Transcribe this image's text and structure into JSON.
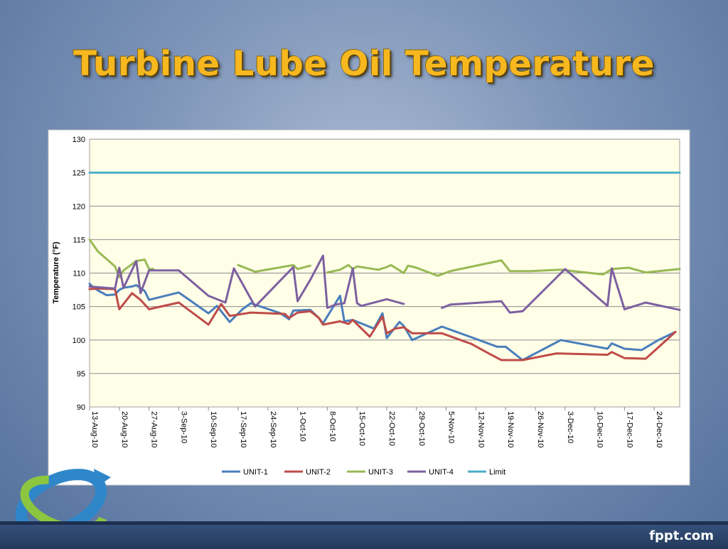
{
  "slide": {
    "title": "Turbine Lube Oil Temperature",
    "brand": "fppt.com"
  },
  "colors": {
    "unit1": "#4a7ebb",
    "unit2": "#be4b48",
    "unit3": "#98b954",
    "unit4": "#7d60a0",
    "limit": "#4bacc6",
    "plot_bg": "#ffffe8",
    "title": "#f7b81f"
  },
  "icons": {
    "logo": "circular-arrows-logo-icon"
  },
  "chart_data": {
    "type": "line",
    "ylabel": "Temperature (°F)",
    "xlabel": "",
    "ylim": [
      90,
      130
    ],
    "yticks": [
      90,
      95,
      100,
      105,
      110,
      115,
      120,
      125,
      130
    ],
    "xlim": [
      "13-Aug-10",
      "30-Dec-10"
    ],
    "xticks": [
      "13-Aug-10",
      "20-Aug-10",
      "27-Aug-10",
      "3-Sep-10",
      "10-Sep-10",
      "17-Sep-10",
      "24-Sep-10",
      "1-Oct-10",
      "8-Oct-10",
      "15-Oct-10",
      "22-Oct-10",
      "29-Oct-10",
      "5-Nov-10",
      "12-Nov-10",
      "19-Nov-10",
      "26-Nov-10",
      "3-Dec-10",
      "10-Dec-10",
      "17-Dec-10",
      "24-Dec-10"
    ],
    "grid": "horizontal",
    "legend_position": "bottom",
    "series": [
      {
        "name": "UNIT-1",
        "points": [
          [
            "13-Aug-10",
            108.4
          ],
          [
            "14-Aug-10",
            107.8
          ],
          [
            "15-Aug-10",
            107.4
          ],
          [
            "17-Aug-10",
            106.7
          ],
          [
            "19-Aug-10",
            106.8
          ],
          [
            "20-Aug-10",
            107.5
          ],
          [
            "21-Aug-10",
            107.8
          ],
          [
            "23-Aug-10",
            108.0
          ],
          [
            "24-Aug-10",
            108.2
          ],
          [
            "26-Aug-10",
            107.3
          ],
          [
            "27-Aug-10",
            106.0
          ],
          [
            "3-Sep-10",
            107.1
          ],
          [
            "10-Sep-10",
            104.0
          ],
          [
            "12-Sep-10",
            105.1
          ],
          [
            "15-Sep-10",
            102.7
          ],
          [
            "18-Sep-10",
            104.6
          ],
          [
            "20-Sep-10",
            105.5
          ],
          [
            "27-Sep-10",
            104.0
          ],
          [
            "29-Sep-10",
            103.1
          ],
          [
            "30-Sep-10",
            104.4
          ],
          [
            "4-Oct-10",
            104.5
          ],
          [
            "6-Oct-10",
            103.3
          ],
          [
            "7-Oct-10",
            102.5
          ],
          [
            "11-Oct-10",
            106.6
          ],
          [
            "12-Oct-10",
            102.8
          ],
          [
            "14-Oct-10",
            103.0
          ],
          [
            "19-Oct-10",
            101.7
          ],
          [
            "21-Oct-10",
            104.0
          ],
          [
            "22-Oct-10",
            100.3
          ],
          [
            "25-Oct-10",
            102.7
          ],
          [
            "26-Oct-10",
            102.1
          ],
          [
            "28-Oct-10",
            100.0
          ],
          [
            "4-Nov-10",
            102.0
          ],
          [
            "11-Nov-10",
            100.4
          ],
          [
            "17-Nov-10",
            99.0
          ],
          [
            "19-Nov-10",
            99.0
          ],
          [
            "23-Nov-10",
            97.0
          ],
          [
            "2-Dec-10",
            100.0
          ],
          [
            "13-Dec-10",
            98.7
          ],
          [
            "14-Dec-10",
            99.5
          ],
          [
            "17-Dec-10",
            98.7
          ],
          [
            "21-Dec-10",
            98.5
          ],
          [
            "25-Dec-10",
            100.0
          ],
          [
            "29-Dec-10",
            101.2
          ]
        ]
      },
      {
        "name": "UNIT-2",
        "points": [
          [
            "13-Aug-10",
            107.6
          ],
          [
            "15-Aug-10",
            107.7
          ],
          [
            "19-Aug-10",
            107.6
          ],
          [
            "20-Aug-10",
            104.6
          ],
          [
            "23-Aug-10",
            107.0
          ],
          [
            "25-Aug-10",
            106.0
          ],
          [
            "27-Aug-10",
            104.6
          ],
          [
            "3-Sep-10",
            105.6
          ],
          [
            "10-Sep-10",
            102.3
          ],
          [
            "13-Sep-10",
            105.4
          ],
          [
            "15-Sep-10",
            103.6
          ],
          [
            "20-Sep-10",
            104.1
          ],
          [
            "28-Sep-10",
            103.9
          ],
          [
            "29-Sep-10",
            103.3
          ],
          [
            "1-Oct-10",
            104.1
          ],
          [
            "4-Oct-10",
            104.3
          ],
          [
            "6-Oct-10",
            103.3
          ],
          [
            "7-Oct-10",
            102.3
          ],
          [
            "11-Oct-10",
            102.8
          ],
          [
            "13-Oct-10",
            102.4
          ],
          [
            "14-Oct-10",
            103.0
          ],
          [
            "18-Oct-10",
            100.5
          ],
          [
            "21-Oct-10",
            103.5
          ],
          [
            "22-Oct-10",
            101.0
          ],
          [
            "24-Oct-10",
            101.7
          ],
          [
            "26-Oct-10",
            101.9
          ],
          [
            "28-Oct-10",
            101.0
          ],
          [
            "4-Nov-10",
            101.0
          ],
          [
            "11-Nov-10",
            99.4
          ],
          [
            "15-Nov-10",
            98.0
          ],
          [
            "18-Nov-10",
            97.0
          ],
          [
            "23-Nov-10",
            97.0
          ],
          [
            "1-Dec-10",
            98.0
          ],
          [
            "13-Dec-10",
            97.8
          ],
          [
            "14-Dec-10",
            98.2
          ],
          [
            "17-Dec-10",
            97.3
          ],
          [
            "22-Dec-10",
            97.2
          ],
          [
            "29-Dec-10",
            101.2
          ]
        ]
      },
      {
        "name": "UNIT-3",
        "points": [
          [
            "13-Aug-10",
            115.0
          ],
          [
            "15-Aug-10",
            113.2
          ],
          [
            "19-Aug-10",
            111.0
          ],
          [
            "20-Aug-10",
            109.4
          ],
          [
            "21-Aug-10",
            110.4
          ],
          [
            "24-Aug-10",
            111.8
          ],
          [
            "26-Aug-10",
            112.0
          ],
          [
            "27-Aug-10",
            110.6
          ],
          [
            "28-Aug-10",
            110.6
          ],
          null,
          [
            "17-Sep-10",
            111.2
          ],
          [
            "21-Sep-10",
            110.2
          ],
          [
            "30-Sep-10",
            111.2
          ],
          [
            "1-Oct-10",
            110.6
          ],
          [
            "4-Oct-10",
            111.1
          ],
          null,
          [
            "8-Oct-10",
            110.1
          ],
          [
            "11-Oct-10",
            110.5
          ],
          [
            "13-Oct-10",
            111.2
          ],
          [
            "14-Oct-10",
            110.6
          ],
          [
            "15-Oct-10",
            111.0
          ],
          [
            "20-Oct-10",
            110.5
          ],
          [
            "22-Oct-10",
            110.9
          ],
          [
            "23-Oct-10",
            111.2
          ],
          [
            "26-Oct-10",
            110.0
          ],
          [
            "27-Oct-10",
            111.1
          ],
          [
            "29-Oct-10",
            110.8
          ],
          [
            "3-Nov-10",
            109.6
          ],
          [
            "6-Nov-10",
            110.3
          ],
          [
            "18-Nov-10",
            111.9
          ],
          [
            "20-Nov-10",
            110.3
          ],
          [
            "25-Nov-10",
            110.3
          ],
          [
            "2-Dec-10",
            110.5
          ],
          [
            "12-Dec-10",
            109.8
          ],
          [
            "14-Dec-10",
            110.6
          ],
          [
            "16-Dec-10",
            110.7
          ],
          [
            "18-Dec-10",
            110.8
          ],
          [
            "22-Dec-10",
            110.1
          ],
          [
            "30-Dec-10",
            110.6
          ]
        ]
      },
      {
        "name": "UNIT-4",
        "points": [
          [
            "13-Aug-10",
            108.0
          ],
          [
            "19-Aug-10",
            107.7
          ],
          [
            "20-Aug-10",
            110.8
          ],
          [
            "21-Aug-10",
            107.8
          ],
          [
            "24-Aug-10",
            111.8
          ],
          [
            "25-Aug-10",
            107.0
          ],
          [
            "27-Aug-10",
            110.4
          ],
          [
            "3-Sep-10",
            110.4
          ],
          [
            "10-Sep-10",
            106.6
          ],
          [
            "14-Sep-10",
            105.6
          ],
          [
            "16-Sep-10",
            110.7
          ],
          [
            "21-Sep-10",
            105.0
          ],
          [
            "30-Sep-10",
            110.9
          ],
          [
            "1-Oct-10",
            105.8
          ],
          [
            "4-Oct-10",
            109.0
          ],
          [
            "7-Oct-10",
            112.6
          ],
          [
            "8-Oct-10",
            104.8
          ],
          [
            "10-Oct-10",
            105.3
          ],
          [
            "12-Oct-10",
            105.5
          ],
          [
            "14-Oct-10",
            110.7
          ],
          [
            "15-Oct-10",
            105.5
          ],
          [
            "16-Oct-10",
            105.1
          ],
          [
            "22-Oct-10",
            106.1
          ],
          [
            "26-Oct-10",
            105.4
          ],
          null,
          [
            "4-Nov-10",
            104.8
          ],
          [
            "6-Nov-10",
            105.3
          ],
          [
            "18-Nov-10",
            105.8
          ],
          [
            "20-Nov-10",
            104.1
          ],
          [
            "23-Nov-10",
            104.3
          ],
          [
            "3-Dec-10",
            110.6
          ],
          [
            "13-Dec-10",
            105.1
          ],
          [
            "14-Dec-10",
            110.7
          ],
          [
            "17-Dec-10",
            104.6
          ],
          [
            "22-Dec-10",
            105.6
          ],
          [
            "30-Dec-10",
            104.5
          ]
        ]
      },
      {
        "name": "Limit",
        "points": [
          [
            "13-Aug-10",
            125.0
          ],
          [
            "30-Dec-10",
            125.0
          ]
        ]
      }
    ]
  }
}
